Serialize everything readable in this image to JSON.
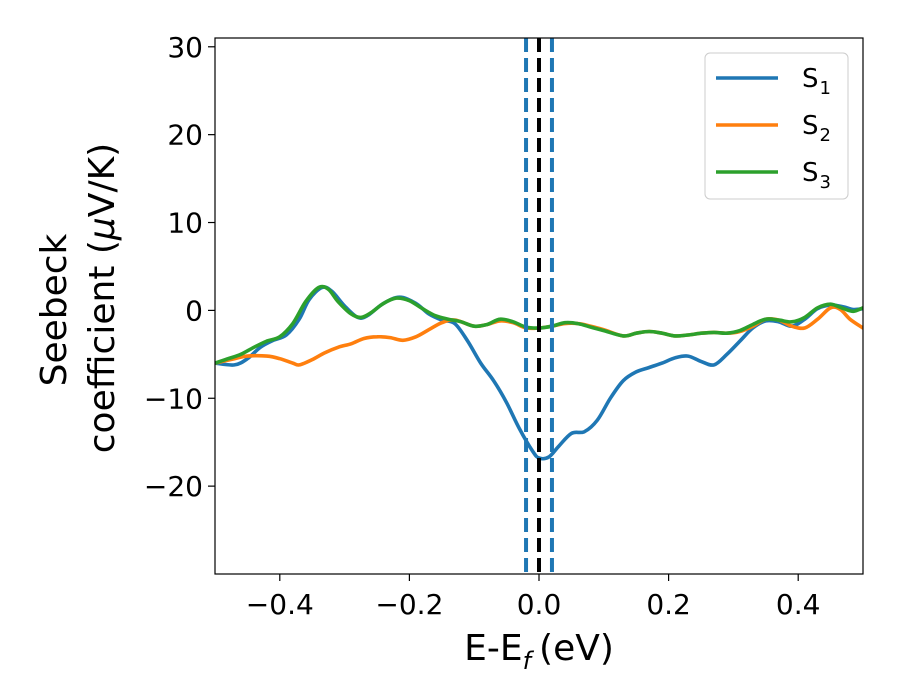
{
  "chart_data": {
    "type": "line",
    "xlabel": "E-E",
    "xlabel_sub": "f",
    "xlabel_unit": "(eV)",
    "ylabel_line1": "Seebeck",
    "ylabel_line2_prefix": "coefficient  (",
    "ylabel_mu": "μ",
    "ylabel_line2_suffix": "V/K)",
    "xlim": [
      -0.5,
      0.5
    ],
    "ylim": [
      -30,
      31
    ],
    "xticks": [
      -0.4,
      -0.2,
      0.0,
      0.2,
      0.4
    ],
    "xtick_labels": [
      "−0.4",
      "−0.2",
      "0.0",
      "0.2",
      "0.4"
    ],
    "yticks": [
      -20,
      -10,
      0,
      10,
      20,
      30
    ],
    "ytick_labels": [
      "−20",
      "−10",
      "0",
      "10",
      "20",
      "30"
    ],
    "grid": false,
    "legend_position": "top-right",
    "series": [
      {
        "name": "S",
        "sub": "1",
        "color": "#1f77b4",
        "points": [
          [
            -0.5,
            -6.0
          ],
          [
            -0.47,
            -6.2
          ],
          [
            -0.45,
            -5.5
          ],
          [
            -0.43,
            -4.2
          ],
          [
            -0.41,
            -3.4
          ],
          [
            -0.39,
            -2.8
          ],
          [
            -0.37,
            -1.0
          ],
          [
            -0.355,
            1.2
          ],
          [
            -0.335,
            2.6
          ],
          [
            -0.32,
            2.2
          ],
          [
            -0.3,
            0.5
          ],
          [
            -0.28,
            -0.8
          ],
          [
            -0.265,
            -0.6
          ],
          [
            -0.24,
            0.8
          ],
          [
            -0.215,
            1.5
          ],
          [
            -0.19,
            0.8
          ],
          [
            -0.17,
            -0.4
          ],
          [
            -0.15,
            -1.1
          ],
          [
            -0.13,
            -1.5
          ],
          [
            -0.11,
            -3.5
          ],
          [
            -0.09,
            -6.0
          ],
          [
            -0.07,
            -8.0
          ],
          [
            -0.05,
            -10.5
          ],
          [
            -0.03,
            -13.5
          ],
          [
            -0.01,
            -16.0
          ],
          [
            0.0,
            -16.8
          ],
          [
            0.015,
            -16.7
          ],
          [
            0.03,
            -15.5
          ],
          [
            0.05,
            -14.0
          ],
          [
            0.07,
            -13.8
          ],
          [
            0.09,
            -12.5
          ],
          [
            0.11,
            -10.0
          ],
          [
            0.13,
            -8.0
          ],
          [
            0.15,
            -7.0
          ],
          [
            0.17,
            -6.5
          ],
          [
            0.19,
            -6.0
          ],
          [
            0.21,
            -5.4
          ],
          [
            0.23,
            -5.2
          ],
          [
            0.25,
            -5.8
          ],
          [
            0.27,
            -6.2
          ],
          [
            0.29,
            -5.0
          ],
          [
            0.31,
            -3.5
          ],
          [
            0.33,
            -2.0
          ],
          [
            0.35,
            -1.2
          ],
          [
            0.37,
            -1.3
          ],
          [
            0.39,
            -1.8
          ],
          [
            0.41,
            -1.0
          ],
          [
            0.43,
            0.2
          ],
          [
            0.45,
            0.6
          ],
          [
            0.47,
            0.4
          ],
          [
            0.485,
            0.1
          ],
          [
            0.5,
            0.2
          ]
        ]
      },
      {
        "name": "S",
        "sub": "2",
        "color": "#ff7f0e",
        "points": [
          [
            -0.5,
            -6.0
          ],
          [
            -0.47,
            -5.5
          ],
          [
            -0.45,
            -5.2
          ],
          [
            -0.42,
            -5.2
          ],
          [
            -0.4,
            -5.5
          ],
          [
            -0.38,
            -6.0
          ],
          [
            -0.37,
            -6.2
          ],
          [
            -0.35,
            -5.6
          ],
          [
            -0.33,
            -4.8
          ],
          [
            -0.31,
            -4.2
          ],
          [
            -0.29,
            -3.8
          ],
          [
            -0.27,
            -3.2
          ],
          [
            -0.25,
            -3.0
          ],
          [
            -0.23,
            -3.1
          ],
          [
            -0.21,
            -3.4
          ],
          [
            -0.19,
            -3.0
          ],
          [
            -0.17,
            -2.2
          ],
          [
            -0.15,
            -1.4
          ],
          [
            -0.13,
            -1.1
          ],
          [
            -0.1,
            -1.8
          ],
          [
            -0.08,
            -1.6
          ],
          [
            -0.06,
            -1.2
          ],
          [
            -0.04,
            -1.4
          ],
          [
            -0.02,
            -2.0
          ],
          [
            0.0,
            -2.0
          ],
          [
            0.02,
            -1.8
          ],
          [
            0.04,
            -1.5
          ],
          [
            0.06,
            -1.5
          ],
          [
            0.08,
            -1.8
          ],
          [
            0.1,
            -2.2
          ],
          [
            0.13,
            -2.9
          ],
          [
            0.15,
            -2.6
          ],
          [
            0.17,
            -2.4
          ],
          [
            0.19,
            -2.6
          ],
          [
            0.21,
            -2.9
          ],
          [
            0.23,
            -2.8
          ],
          [
            0.25,
            -2.6
          ],
          [
            0.27,
            -2.5
          ],
          [
            0.29,
            -2.6
          ],
          [
            0.31,
            -2.4
          ],
          [
            0.33,
            -1.8
          ],
          [
            0.35,
            -1.0
          ],
          [
            0.37,
            -1.1
          ],
          [
            0.39,
            -1.8
          ],
          [
            0.41,
            -2.0
          ],
          [
            0.43,
            -1.0
          ],
          [
            0.45,
            0.3
          ],
          [
            0.465,
            0.1
          ],
          [
            0.48,
            -1.0
          ],
          [
            0.5,
            -2.0
          ]
        ]
      },
      {
        "name": "S",
        "sub": "3",
        "color": "#2ca02c",
        "points": [
          [
            -0.5,
            -6.0
          ],
          [
            -0.48,
            -5.5
          ],
          [
            -0.46,
            -5.0
          ],
          [
            -0.44,
            -4.2
          ],
          [
            -0.42,
            -3.5
          ],
          [
            -0.4,
            -3.0
          ],
          [
            -0.38,
            -1.5
          ],
          [
            -0.36,
            1.0
          ],
          [
            -0.34,
            2.6
          ],
          [
            -0.325,
            2.4
          ],
          [
            -0.31,
            1.0
          ],
          [
            -0.29,
            -0.4
          ],
          [
            -0.275,
            -0.8
          ],
          [
            -0.26,
            -0.3
          ],
          [
            -0.24,
            0.8
          ],
          [
            -0.22,
            1.4
          ],
          [
            -0.2,
            1.1
          ],
          [
            -0.18,
            0.2
          ],
          [
            -0.16,
            -0.6
          ],
          [
            -0.14,
            -1.0
          ],
          [
            -0.12,
            -1.3
          ],
          [
            -0.1,
            -1.8
          ],
          [
            -0.08,
            -1.6
          ],
          [
            -0.06,
            -1.0
          ],
          [
            -0.04,
            -1.3
          ],
          [
            -0.02,
            -1.9
          ],
          [
            0.0,
            -2.0
          ],
          [
            0.02,
            -1.8
          ],
          [
            0.04,
            -1.4
          ],
          [
            0.06,
            -1.5
          ],
          [
            0.08,
            -1.9
          ],
          [
            0.1,
            -2.3
          ],
          [
            0.13,
            -2.9
          ],
          [
            0.15,
            -2.6
          ],
          [
            0.17,
            -2.4
          ],
          [
            0.19,
            -2.6
          ],
          [
            0.21,
            -2.9
          ],
          [
            0.23,
            -2.8
          ],
          [
            0.25,
            -2.6
          ],
          [
            0.27,
            -2.5
          ],
          [
            0.29,
            -2.6
          ],
          [
            0.31,
            -2.3
          ],
          [
            0.33,
            -1.6
          ],
          [
            0.35,
            -1.0
          ],
          [
            0.37,
            -1.1
          ],
          [
            0.39,
            -1.3
          ],
          [
            0.41,
            -0.8
          ],
          [
            0.43,
            0.3
          ],
          [
            0.45,
            0.7
          ],
          [
            0.47,
            0.2
          ],
          [
            0.485,
            -0.1
          ],
          [
            0.5,
            0.3
          ]
        ]
      }
    ],
    "vlines": [
      {
        "x": 0.0,
        "style": "dashed",
        "color": "#000000"
      },
      {
        "x": -0.02,
        "style": "dashed",
        "color": "#1f77b4"
      },
      {
        "x": 0.02,
        "style": "dashed",
        "color": "#1f77b4"
      }
    ]
  }
}
